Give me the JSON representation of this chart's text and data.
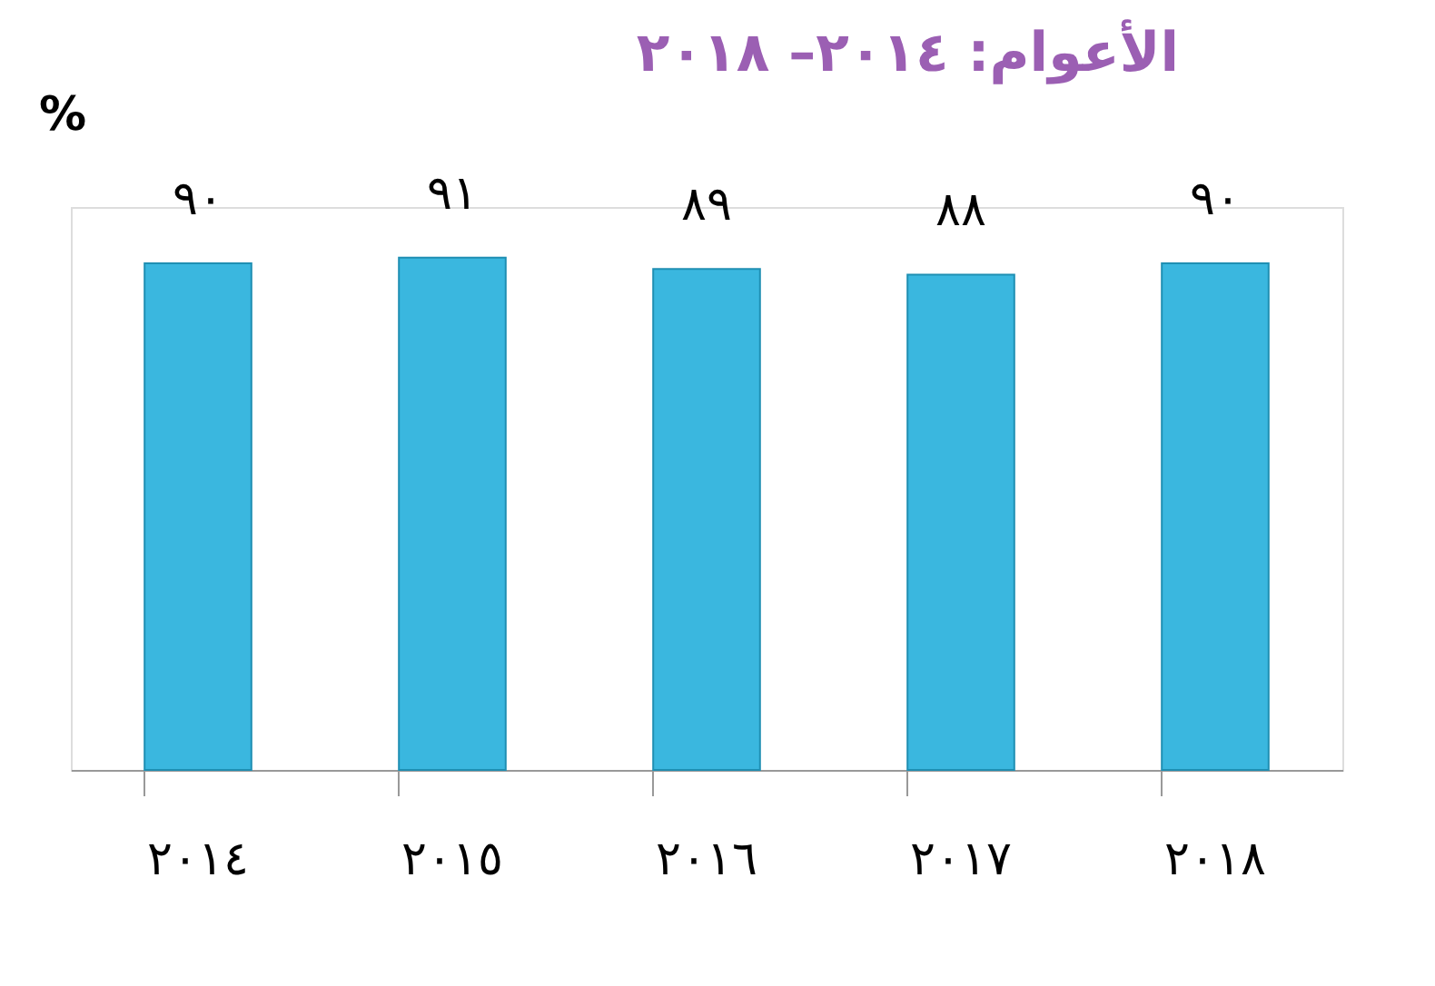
{
  "chart_data": {
    "type": "bar",
    "title": "الأعوام: ٢٠١٤– ٢٠١٨",
    "ylabel": "%",
    "categories": [
      "٢٠١٤",
      "٢٠١٥",
      "٢٠١٦",
      "٢٠١٧",
      "٢٠١٨"
    ],
    "values": [
      90,
      91,
      89,
      88,
      90
    ],
    "value_labels": [
      "٩٠",
      "٩١",
      "٨٩",
      "٨٨",
      "٩٠"
    ],
    "color": "#3ab7df",
    "grid": false,
    "tick_labels": "x"
  }
}
